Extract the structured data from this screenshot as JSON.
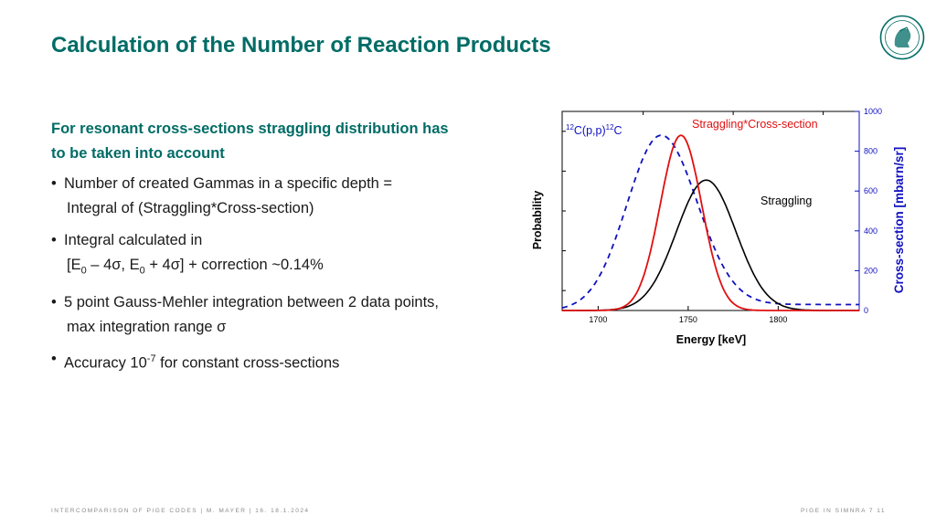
{
  "slide": {
    "title": "Calculation of the Number of Reaction Products",
    "heading_line1": "For resonant cross-sections straggling distribution has",
    "heading_line2": "to be taken into account",
    "bullets": [
      {
        "line1": "Number of created Gammas in a specific depth =",
        "line2": "Integral of (Straggling*Cross-section)"
      },
      {
        "line1": "Integral calculated in"
      },
      {
        "line1": "5 point Gauss-Mehler integration between 2 data points,",
        "line2": "max integration range σ"
      },
      {
        "line1_pre": "Accuracy  10",
        "line1_sup": "-7",
        "line1_post": " for constant cross-sections"
      }
    ],
    "bullet2_line2": {
      "p1": "[E",
      "s1": "0",
      "p2": " – 4σ, E",
      "s2": "0",
      "p3": " + 4σ] + correction ~0.14%"
    }
  },
  "footer": {
    "left": "INTERCOMPARISON OF PIGE CODES | M. MAYER | 16.   18.1.2024",
    "right": "PIGE IN SIMNRA 7     11"
  },
  "icons": {
    "logo": "max-planck-minerva-logo"
  },
  "colors": {
    "accent": "#006c66",
    "straggling_cross_section": "#e01010",
    "straggling": "#000000",
    "cross_section": "#1010c0"
  },
  "chart_data": {
    "type": "line",
    "xlabel": "Energy [keV]",
    "ylabel_left": "Probability",
    "ylabel_right": "Cross-section [mbarn/sr]",
    "xlim": [
      1680,
      1845
    ],
    "ylim_right": [
      0,
      1000
    ],
    "x_ticks": [
      1700,
      1750,
      1800
    ],
    "y_right_ticks": [
      0,
      200,
      400,
      600,
      800,
      1000
    ],
    "reaction_label": {
      "sup1": "12",
      "mid": "C(p,p)",
      "sup2": "12",
      "end": "C"
    },
    "series": [
      {
        "name": "Straggling*Cross-section",
        "style": "solid",
        "peak_x": 1746,
        "peak_y": 880,
        "sigma": 11.5,
        "baseline": 0
      },
      {
        "name": "Straggling",
        "style": "solid",
        "peak_x": 1760,
        "peak_y": 655,
        "sigma": 16.5,
        "baseline": 0
      },
      {
        "style": "dashed",
        "peak_x": 1735,
        "peak_y": 880,
        "sigma": 19,
        "baseline": 0,
        "tail_baseline": 30
      }
    ]
  }
}
